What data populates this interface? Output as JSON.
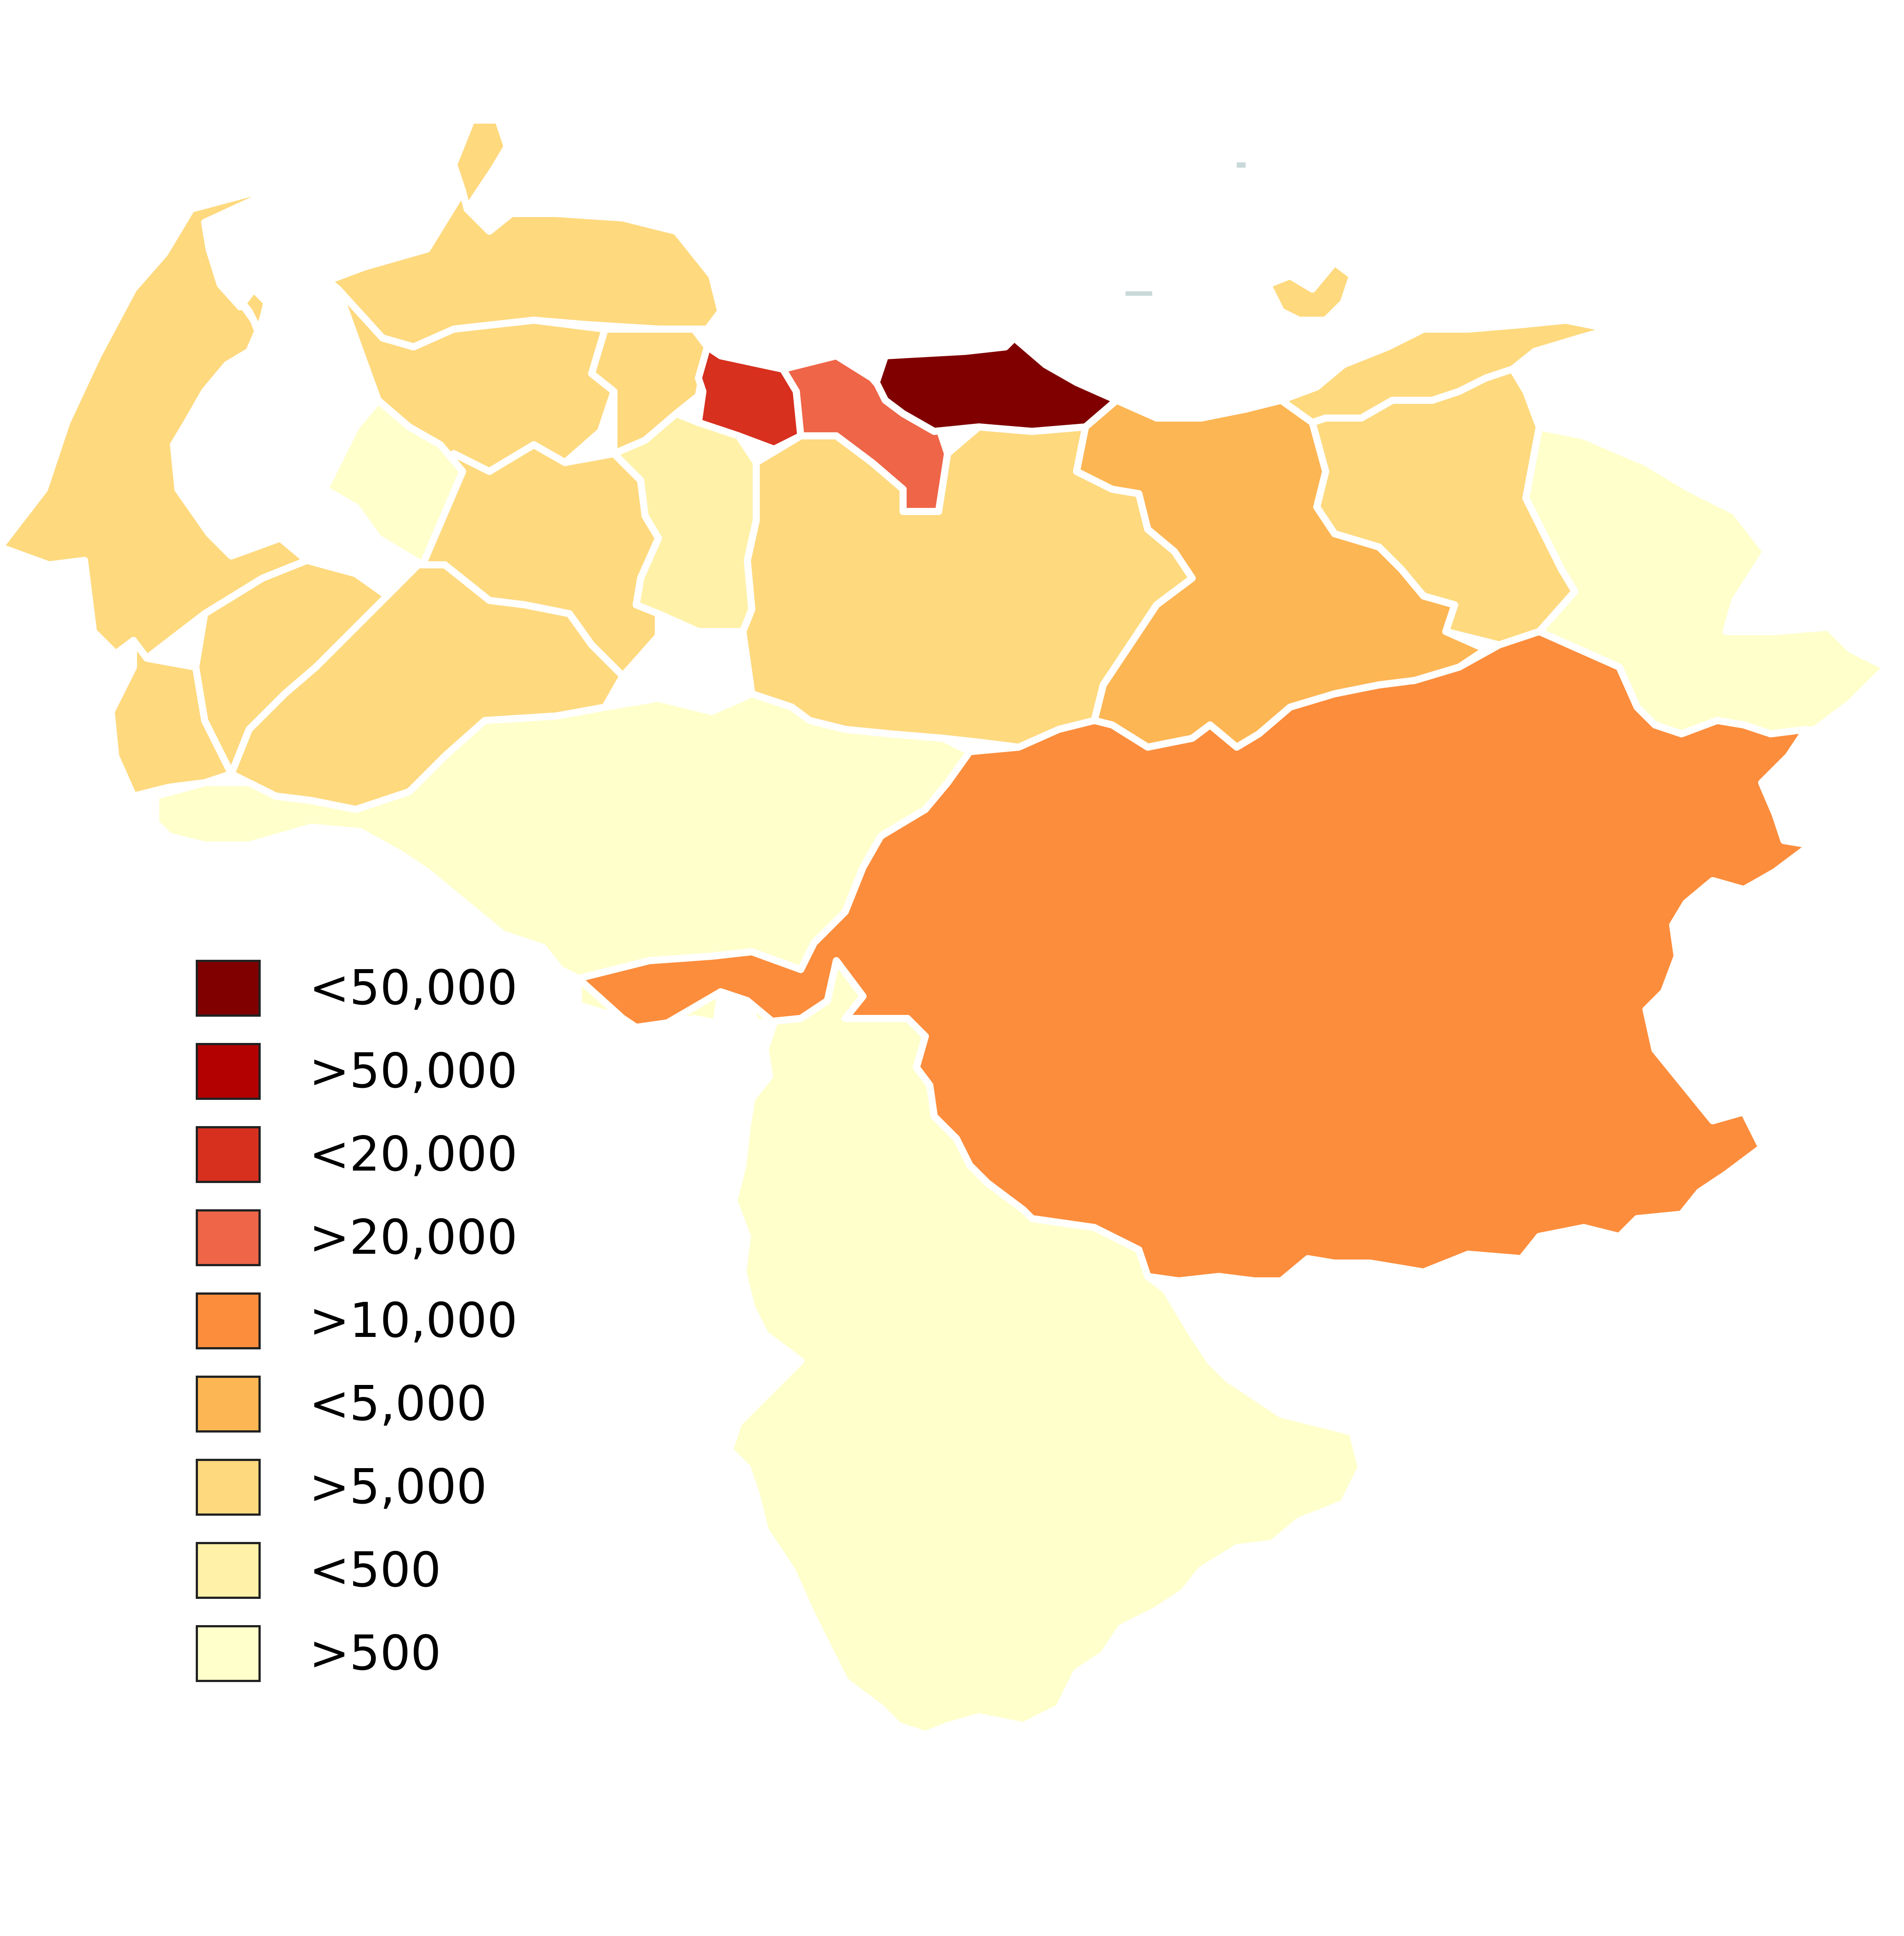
{
  "map": {
    "colors": {
      "c50k_lt": "#800000",
      "c50k_gt": "#b30000",
      "c20k_lt": "#d7301f",
      "c20k_gt": "#ef6548",
      "c10k_gt": "#fc8d3c",
      "c5k_lt": "#fdb654",
      "c5k_gt": "#fed97e",
      "c500_lt": "#fff1a8",
      "c500_gt": "#ffffcc",
      "border": "#ffffff",
      "water": "#c9d9d9"
    }
  },
  "legend": {
    "items": [
      {
        "label": "<50,000",
        "color": "#800000"
      },
      {
        "label": ">50,000",
        "color": "#b30000"
      },
      {
        "label": "<20,000",
        "color": "#d7301f"
      },
      {
        "label": ">20,000",
        "color": "#ef6548"
      },
      {
        "label": ">10,000",
        "color": "#fc8d3c"
      },
      {
        "label": "<5,000",
        "color": "#fdb654"
      },
      {
        "label": ">5,000",
        "color": "#fed97e"
      },
      {
        "label": "<500",
        "color": "#fff1a8"
      },
      {
        "label": ">500",
        "color": "#ffffcc"
      }
    ]
  }
}
